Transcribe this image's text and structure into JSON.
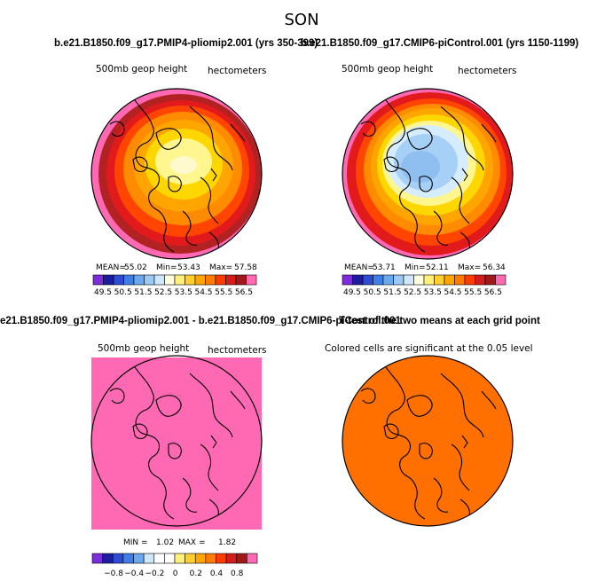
{
  "page_title": "SON",
  "headers": {
    "panel1": "b.e21.B1850.f09_g17.PMIP4-pliomip2.001 (yrs 350-399)",
    "panel2": "b.e21.B1850.f09_g17.CMIP6-piControl.001 (yrs 1150-1199)",
    "diff": "e21.B1850.f09_g17.PMIP4-pliomip2.001 - b.e21.B1850.f09_g17.CMIP6-piControl.001",
    "ttest": "T-test of the two means at each grid point"
  },
  "colors": {
    "pink": "#ff69b4",
    "darkred": "#b22222",
    "red": "#e31a1c",
    "redorange": "#ff4500",
    "orange": "#ff8c00",
    "amber": "#ffa500",
    "gold": "#ffd700",
    "lightyellow": "#fff68f",
    "cream": "#fffacd",
    "paleblue": "#d6ecff",
    "lightblue": "#a6d0f5",
    "skyblue": "#8fbef0",
    "sigorange": "#ff7000"
  },
  "chart_data": [
    {
      "type": "heatmap",
      "name": "panel-1",
      "variable": "500mb geop height",
      "units": "hectometers",
      "stats": {
        "mean_label": "MEAN=",
        "mean": "55.02",
        "min_label": "Min=",
        "min": "53.43",
        "max_label": "Max=",
        "max": "57.58"
      },
      "colorbar_labels": [
        "49.5",
        "50.5",
        "51.5",
        "52.5",
        "53.5",
        "54.5",
        "55.5",
        "56.5"
      ],
      "colorbar_colors": [
        "#7b2cdb",
        "#1c1c9e",
        "#2f4bd1",
        "#3d7fe6",
        "#6aa8f0",
        "#9cc8f5",
        "#cfe6fb",
        "#fffde0",
        "#fff07a",
        "#ffcf2e",
        "#ffa500",
        "#ff7a00",
        "#ff3c00",
        "#d41c1c",
        "#a01818",
        "#ff69b4"
      ]
    },
    {
      "type": "heatmap",
      "name": "panel-2",
      "variable": "500mb geop height",
      "units": "hectometers",
      "stats": {
        "mean_label": "MEAN=",
        "mean": "53.71",
        "min_label": "Min=",
        "min": "52.11",
        "max_label": "Max=",
        "max": "56.34"
      },
      "colorbar_labels": [
        "49.5",
        "50.5",
        "51.5",
        "52.5",
        "53.5",
        "54.5",
        "55.5",
        "56.5"
      ],
      "colorbar_colors": [
        "#7b2cdb",
        "#1c1c9e",
        "#2f4bd1",
        "#3d7fe6",
        "#6aa8f0",
        "#9cc8f5",
        "#cfe6fb",
        "#fffde0",
        "#fff07a",
        "#ffcf2e",
        "#ffa500",
        "#ff7a00",
        "#ff3c00",
        "#d41c1c",
        "#a01818",
        "#ff69b4"
      ]
    },
    {
      "type": "heatmap",
      "name": "difference",
      "variable": "500mb geop height",
      "units": "hectometers",
      "stats": {
        "min_label": "MIN =",
        "min": "1.02",
        "max_label": "MAX =",
        "max": "1.82"
      },
      "colorbar_labels": [
        "−0.8",
        "−0.4",
        "−0.2",
        "0",
        "0.2",
        "0.4",
        "0.8"
      ],
      "colorbar_colors": [
        "#7b2cdb",
        "#1c1c9e",
        "#2f4bd1",
        "#3d7fe6",
        "#6aa8f0",
        "#cfe6fb",
        "#ffffff",
        "#ffffff",
        "#fff07a",
        "#ffcf2e",
        "#ffa500",
        "#ff7a00",
        "#ff3c00",
        "#d41c1c",
        "#a01818",
        "#ff69b4"
      ]
    },
    {
      "type": "heatmap",
      "name": "significance",
      "caption": "Colored cells are significant at the 0.05 level"
    }
  ]
}
